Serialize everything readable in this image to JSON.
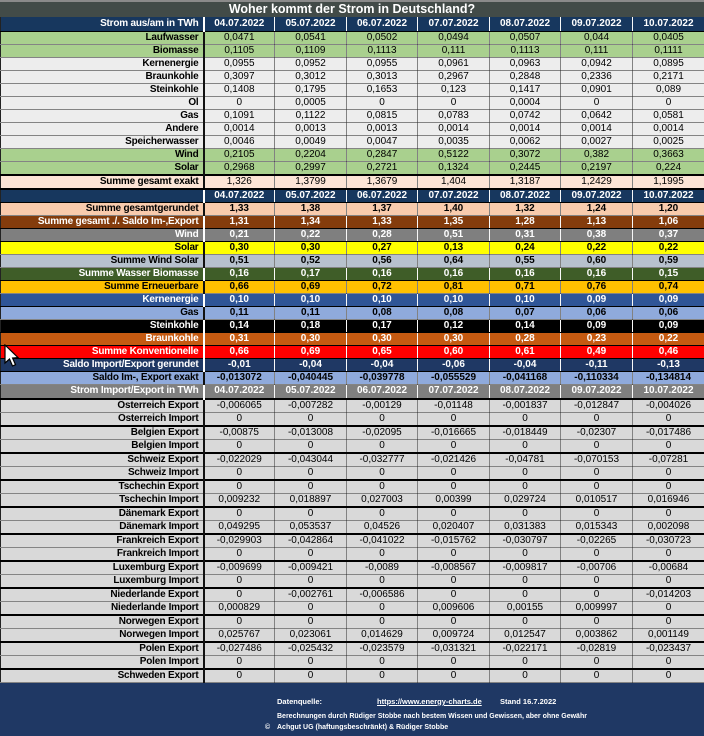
{
  "title": "Woher kommt der Strom in Deutschland?",
  "colors": {
    "title_bar": "#424B48",
    "header_navy": "#17375E",
    "header_gray": "#7F7F7F",
    "renewable_green": "#A9D08E",
    "sum_exact_peach": "#FCE4D6",
    "sum_rounded_peach": "#F8CBAD",
    "saldo_brown": "#843C0C",
    "wind_gray": "#7F7F7F",
    "solar_yellow": "#FFFF00",
    "wind_solar_bluegray": "#B7C1CD",
    "wasser_biomasse_green": "#3F5D28",
    "erneuerbare_amber": "#FFC000",
    "kernenergie_blue": "#2F5597",
    "gas_lightblue": "#8FAADC",
    "steinkohle_black": "#000000",
    "braunkohle_rust": "#C55A11",
    "konventionelle_red": "#FF0000",
    "saldo_navy": "#1F3864",
    "country_gray": "#D9D9D9",
    "footer_navy": "#1F3864"
  },
  "columns": {
    "dates": [
      "04.07.2022",
      "05.07.2022",
      "06.07.2022",
      "07.07.2022",
      "08.07.2022",
      "09.07.2022",
      "10.07.2022"
    ]
  },
  "sections": [
    {
      "id": "strom_aus",
      "header_label": "Strom aus/am in TWh",
      "header_style": "navy",
      "rows": [
        {
          "label": "Laufwasser",
          "style": "green",
          "values": [
            "0,0471",
            "0,0541",
            "0,0502",
            "0,0494",
            "0,0507",
            "0,044",
            "0,0405"
          ]
        },
        {
          "label": "Biomasse",
          "style": "green",
          "values": [
            "0,1105",
            "0,1109",
            "0,1113",
            "0,111",
            "0,1113",
            "0,111",
            "0,1111"
          ]
        },
        {
          "label": "Kernenergie",
          "style": "plain",
          "values": [
            "0,0955",
            "0,0952",
            "0,0955",
            "0,0961",
            "0,0963",
            "0,0942",
            "0,0895"
          ]
        },
        {
          "label": "Braunkohle",
          "style": "plain",
          "values": [
            "0,3097",
            "0,3012",
            "0,3013",
            "0,2967",
            "0,2848",
            "0,2336",
            "0,2171"
          ]
        },
        {
          "label": "Steinkohle",
          "style": "plain",
          "values": [
            "0,1408",
            "0,1795",
            "0,1653",
            "0,123",
            "0,1417",
            "0,0901",
            "0,089"
          ]
        },
        {
          "label": "Öl",
          "style": "plain",
          "values": [
            "0",
            "0,0005",
            "0",
            "0",
            "0,0004",
            "0",
            "0"
          ]
        },
        {
          "label": "Gas",
          "style": "plain",
          "values": [
            "0,1091",
            "0,1122",
            "0,0815",
            "0,0783",
            "0,0742",
            "0,0642",
            "0,0581"
          ]
        },
        {
          "label": "Andere",
          "style": "plain",
          "values": [
            "0,0014",
            "0,0013",
            "0,0013",
            "0,0014",
            "0,0014",
            "0,0014",
            "0,0014"
          ]
        },
        {
          "label": "Speicherwasser",
          "style": "plain",
          "values": [
            "0,0046",
            "0,0049",
            "0,0047",
            "0,0035",
            "0,0062",
            "0,0027",
            "0,0025"
          ]
        },
        {
          "label": "Wind",
          "style": "green",
          "values": [
            "0,2105",
            "0,2204",
            "0,2847",
            "0,5122",
            "0,3072",
            "0,382",
            "0,3663"
          ]
        },
        {
          "label": "Solar",
          "style": "green",
          "values": [
            "0,2968",
            "0,2997",
            "0,2721",
            "0,1324",
            "0,2445",
            "0,2197",
            "0,224"
          ]
        },
        {
          "label": "Summe  gesamt exakt",
          "style": "exakt",
          "values": [
            "1,326",
            "1,3799",
            "1,3679",
            "1,404",
            "1,3187",
            "1,2429",
            "1,1995"
          ]
        }
      ]
    },
    {
      "id": "summen",
      "header_label": "",
      "header_style": "navy",
      "rows": [
        {
          "label": "Summe gesamtgerundet",
          "style": "peach",
          "values": [
            "1,33",
            "1,38",
            "1,37",
            "1,40",
            "1,32",
            "1,24",
            "1,20"
          ]
        },
        {
          "label": "Summe gesamt ./. Saldo Im-,Export",
          "style": "brown",
          "values": [
            "1,31",
            "1,34",
            "1,33",
            "1,35",
            "1,28",
            "1,13",
            "1,06"
          ]
        },
        {
          "label": "Wind",
          "style": "gray",
          "values": [
            "0,21",
            "0,22",
            "0,28",
            "0,51",
            "0,31",
            "0,38",
            "0,37"
          ]
        },
        {
          "label": "Solar",
          "style": "yellow",
          "values": [
            "0,30",
            "0,30",
            "0,27",
            "0,13",
            "0,24",
            "0,22",
            "0,22"
          ]
        },
        {
          "label": "Summe Wind Solar",
          "style": "bluegray",
          "values": [
            "0,51",
            "0,52",
            "0,56",
            "0,64",
            "0,55",
            "0,60",
            "0,59"
          ]
        },
        {
          "label": "Summe Wasser Biomasse",
          "style": "darkgreen",
          "values": [
            "0,16",
            "0,17",
            "0,16",
            "0,16",
            "0,16",
            "0,16",
            "0,15"
          ]
        },
        {
          "label": "Summe Erneuerbare",
          "style": "amber",
          "values": [
            "0,66",
            "0,69",
            "0,72",
            "0,81",
            "0,71",
            "0,76",
            "0,74"
          ]
        }
      ]
    },
    {
      "id": "konventionelle",
      "header_label": null,
      "rows": [
        {
          "label": "Kernenergie",
          "style": "mediumblue",
          "values": [
            "0,10",
            "0,10",
            "0,10",
            "0,10",
            "0,10",
            "0,09",
            "0,09"
          ]
        },
        {
          "label": "Gas",
          "style": "lightblue",
          "values": [
            "0,11",
            "0,11",
            "0,08",
            "0,08",
            "0,07",
            "0,06",
            "0,06"
          ]
        },
        {
          "label": "Steinkohle",
          "style": "black",
          "values": [
            "0,14",
            "0,18",
            "0,17",
            "0,12",
            "0,14",
            "0,09",
            "0,09"
          ]
        },
        {
          "label": "Braunkohle",
          "style": "rust",
          "values": [
            "0,31",
            "0,30",
            "0,30",
            "0,30",
            "0,28",
            "0,23",
            "0,22"
          ]
        },
        {
          "label": "Summe Konventionelle",
          "style": "red",
          "values": [
            "0,66",
            "0,69",
            "0,65",
            "0,60",
            "0,61",
            "0,49",
            "0,46"
          ]
        },
        {
          "label": "Saldo Import/Export gerundet",
          "style": "darknavy",
          "values": [
            "-0,01",
            "-0,04",
            "-0,04",
            "-0,06",
            "-0,04",
            "-0,11",
            "-0,13"
          ]
        },
        {
          "label": "Saldo Im-, Export exakt",
          "style": "lightblue",
          "values": [
            "-0,013072",
            "-0,040445",
            "-0,039778",
            "-0,055529",
            "-0,041168",
            "-0,110334",
            "-0,134814"
          ]
        }
      ]
    },
    {
      "id": "import_export",
      "header_label": "Strom Import/Export in TWh",
      "header_style": "grayhdr",
      "pair_groups": true,
      "rows": [
        {
          "label": "Österreich Export",
          "style": "country",
          "values": [
            "-0,006065",
            "-0,007282",
            "-0,00129",
            "-0,01148",
            "-0,001837",
            "-0,012847",
            "-0,004026"
          ]
        },
        {
          "label": "Österreich Import",
          "style": "country",
          "values": [
            "0",
            "0",
            "0",
            "0",
            "0",
            "0",
            "0"
          ]
        },
        {
          "label": "Belgien  Export",
          "style": "country",
          "values": [
            "-0,00875",
            "-0,013008",
            "-0,02095",
            "-0,016665",
            "-0,018449",
            "-0,02307",
            "-0,017486"
          ]
        },
        {
          "label": "Belgien Import",
          "style": "country",
          "values": [
            "0",
            "0",
            "0",
            "0",
            "0",
            "0",
            "0"
          ]
        },
        {
          "label": "Schweiz Export",
          "style": "country",
          "values": [
            "-0,022029",
            "-0,043044",
            "-0,032777",
            "-0,021426",
            "-0,04781",
            "-0,070153",
            "-0,07281"
          ]
        },
        {
          "label": "Schweiz Import",
          "style": "country",
          "values": [
            "0",
            "0",
            "0",
            "0",
            "0",
            "0",
            "0"
          ]
        },
        {
          "label": "Tschechin Export",
          "style": "country",
          "values": [
            "0",
            "0",
            "0",
            "0",
            "0",
            "0",
            "0"
          ]
        },
        {
          "label": "Tschechin Import",
          "style": "country",
          "values": [
            "0,009232",
            "0,018897",
            "0,027003",
            "0,00399",
            "0,029724",
            "0,010517",
            "0,016946"
          ]
        },
        {
          "label": "Dänemark Export",
          "style": "country",
          "values": [
            "0",
            "0",
            "0",
            "0",
            "0",
            "0",
            "0"
          ]
        },
        {
          "label": "Dänemark Import",
          "style": "country",
          "values": [
            "0,049295",
            "0,053537",
            "0,04526",
            "0,020407",
            "0,031383",
            "0,015343",
            "0,002098"
          ]
        },
        {
          "label": "Frankreich Export",
          "style": "country",
          "values": [
            "-0,029903",
            "-0,042864",
            "-0,041022",
            "-0,015762",
            "-0,030797",
            "-0,02265",
            "-0,030723"
          ]
        },
        {
          "label": "Frankreich Import",
          "style": "country",
          "values": [
            "0",
            "0",
            "0",
            "0",
            "0",
            "0",
            "0"
          ]
        },
        {
          "label": "Luxemburg Export",
          "style": "country",
          "values": [
            "-0,009699",
            "-0,009421",
            "-0,0089",
            "-0,008567",
            "-0,009817",
            "-0,00706",
            "-0,00684"
          ]
        },
        {
          "label": "Luxemburg Import",
          "style": "country",
          "values": [
            "0",
            "0",
            "0",
            "0",
            "0",
            "0",
            "0"
          ]
        },
        {
          "label": "Niederlande Export",
          "style": "country",
          "values": [
            "0",
            "-0,002761",
            "-0,006586",
            "0",
            "0",
            "0",
            "-0,014203"
          ]
        },
        {
          "label": "Niederlande Import",
          "style": "country",
          "values": [
            "0,000829",
            "0",
            "0",
            "0,009606",
            "0,00155",
            "0,009997",
            "0"
          ]
        },
        {
          "label": "Norwegen Export",
          "style": "country",
          "values": [
            "0",
            "0",
            "0",
            "0",
            "0",
            "0",
            "0"
          ]
        },
        {
          "label": "Norwegen Import",
          "style": "country",
          "values": [
            "0,025767",
            "0,023061",
            "0,014629",
            "0,009724",
            "0,012547",
            "0,003862",
            "0,001149"
          ]
        },
        {
          "label": "Polen  Export",
          "style": "country",
          "values": [
            "-0,027486",
            "-0,025432",
            "-0,023579",
            "-0,031321",
            "-0,022171",
            "-0,02819",
            "-0,023437"
          ]
        },
        {
          "label": "Polen Import",
          "style": "country",
          "values": [
            "0",
            "0",
            "0",
            "0",
            "0",
            "0",
            "0"
          ]
        },
        {
          "label": "Schweden Export",
          "style": "country",
          "values": [
            "0",
            "0",
            "0",
            "0",
            "0",
            "0",
            "0"
          ]
        },
        {
          "label": "Schweden Import",
          "style": "country",
          "values": [
            "0,005737",
            "0,007872",
            "0,008434",
            "0,005965",
            "0,014509",
            "0,013917",
            "0,014518"
          ]
        }
      ]
    }
  ],
  "footer": {
    "source_label": "Datenquelle:",
    "source_url": "https://www.energy-charts.de",
    "stand": "Stand 16.7.2022",
    "disclaimer": "Berechnungen durch Rüdiger Stobbe nach bestem Wissen und Gewissen, aber ohne Gewähr",
    "copyright_symbol": "©",
    "copyright_text": "Achgut UG (haftungsbeschränkt) & Rüdiger Stobbe"
  }
}
